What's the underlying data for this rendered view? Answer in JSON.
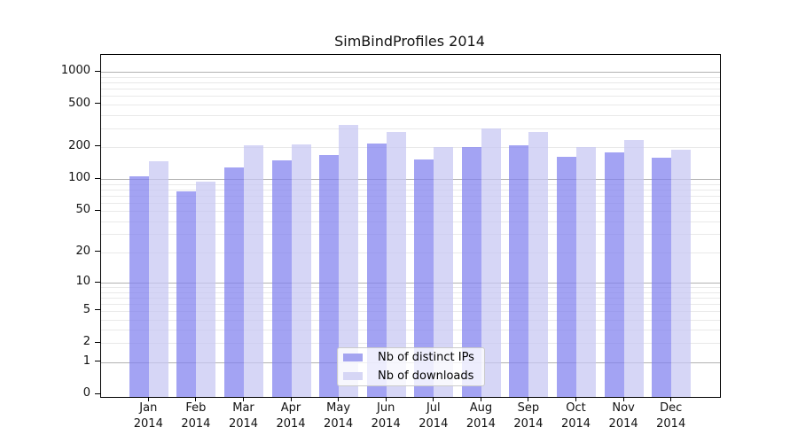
{
  "chart_data": {
    "type": "bar",
    "title": "SimBindProfiles 2014",
    "categories": [
      "Jan 2014",
      "Feb 2014",
      "Mar 2014",
      "Apr 2014",
      "May 2014",
      "Jun 2014",
      "Jul 2014",
      "Aug 2014",
      "Sep 2014",
      "Oct 2014",
      "Nov 2014",
      "Dec 2014"
    ],
    "series": [
      {
        "name": "Nb of distinct IPs",
        "color": "#a4a4f0",
        "fill": "rgba(128,128,238,0.72)",
        "values": [
          106,
          77,
          130,
          150,
          167,
          216,
          152,
          200,
          208,
          163,
          178,
          158
        ]
      },
      {
        "name": "Nb of downloads",
        "color": "#d6d6f5",
        "fill": "rgba(198,198,243,0.72)",
        "values": [
          148,
          95,
          206,
          210,
          321,
          276,
          200,
          298,
          276,
          201,
          235,
          188
        ]
      }
    ],
    "xlabel": "",
    "ylabel": "",
    "yscale": "log10(value+1)",
    "ylim": [
      0,
      1450
    ],
    "y_ticks": [
      0,
      1,
      2,
      5,
      10,
      20,
      50,
      100,
      200,
      500,
      1000
    ],
    "y_tick_labels": [
      "0",
      "1",
      "2",
      "5",
      "10",
      "20",
      "50",
      "100",
      "200",
      "500",
      "1000"
    ],
    "major_gridlines": [
      1,
      10,
      100,
      1000
    ],
    "minor_gridlines": [
      2,
      3,
      4,
      5,
      6,
      7,
      8,
      9,
      20,
      30,
      40,
      50,
      60,
      70,
      80,
      90,
      200,
      300,
      400,
      500,
      600,
      700,
      800,
      900
    ],
    "grid": true,
    "legend_position": "lower center"
  },
  "colors": {
    "background": "#ffffff",
    "axis": "#000000",
    "major_grid": "#b2b2b2",
    "minor_grid": "#e9e9e9",
    "text": "#111111",
    "legend_border": "#cbcbcb",
    "legend_bg": "rgba(255,255,255,0.8)"
  }
}
